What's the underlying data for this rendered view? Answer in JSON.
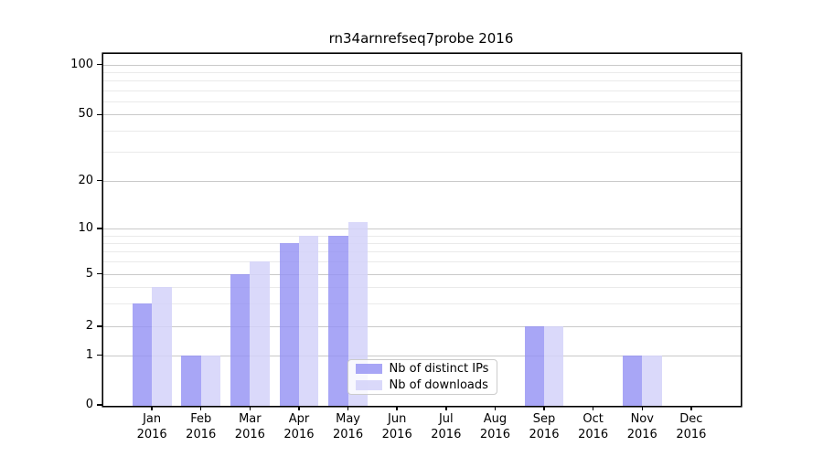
{
  "figure": {
    "background": "#ffffff"
  },
  "chart_data": {
    "type": "bar",
    "title": "rn34arnrefseq7probe 2016",
    "year": "2016",
    "months": [
      "Jan",
      "Feb",
      "Mar",
      "Apr",
      "May",
      "Jun",
      "Jul",
      "Aug",
      "Sep",
      "Oct",
      "Nov",
      "Dec"
    ],
    "categories": [
      "Jan 2016",
      "Feb 2016",
      "Mar 2016",
      "Apr 2016",
      "May 2016",
      "Jun 2016",
      "Jul 2016",
      "Aug 2016",
      "Sep 2016",
      "Oct 2016",
      "Nov 2016",
      "Dec 2016"
    ],
    "series": [
      {
        "name": "Nb of distinct IPs",
        "color": "#9592f4",
        "alpha": 0.82,
        "values": [
          3,
          1,
          5,
          8,
          9,
          0,
          0,
          0,
          2,
          0,
          1,
          0
        ]
      },
      {
        "name": "Nb of downloads",
        "color": "#d3d2f9",
        "alpha": 0.85,
        "values": [
          4,
          1,
          6,
          9,
          11,
          0,
          0,
          0,
          2,
          0,
          1,
          0
        ]
      }
    ],
    "xlabel": "",
    "ylabel": "",
    "yscale": "symlog",
    "yticks": [
      0,
      1,
      2,
      5,
      10,
      20,
      50,
      100
    ],
    "minor_gridlines": [
      3,
      4,
      6,
      7,
      8,
      9,
      30,
      40,
      60,
      70,
      80,
      90
    ],
    "ylim": [
      0,
      115
    ],
    "grid": "horizontal",
    "legend_position": "lower center inside",
    "colors": {
      "major_grid": "#c9c9c9",
      "minor_grid": "#eaeaea",
      "axis": "#000000",
      "text": "#000000"
    }
  },
  "legend": {
    "items": [
      "Nb of distinct IPs",
      "Nb of downloads"
    ]
  }
}
